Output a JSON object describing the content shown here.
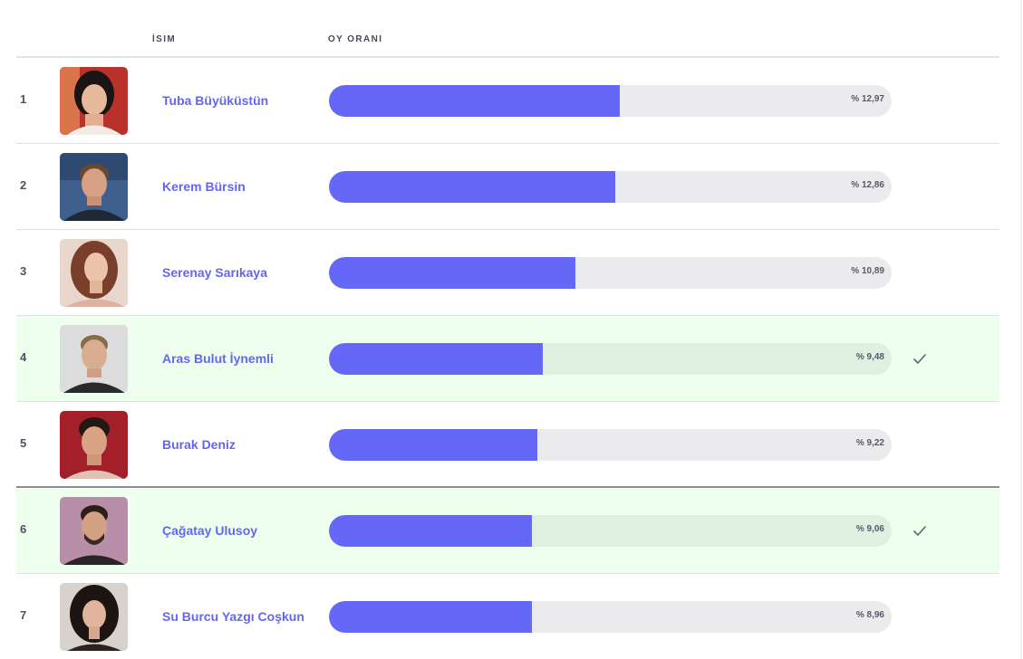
{
  "header": {
    "name_label": "İSIM",
    "vote_label": "OY ORANI"
  },
  "colors": {
    "accent": "#6567f6",
    "selected_row": "#efffee",
    "bar_track": "#ebebee"
  },
  "rows": [
    {
      "rank": "1",
      "name": "Tuba Büyüküstün",
      "percent_label": "% 12,97",
      "share": 0.5177,
      "selected": false,
      "avatar": "avatar-portrait"
    },
    {
      "rank": "2",
      "name": "Kerem Bürsin",
      "percent_label": "% 12,86",
      "share": 0.5081,
      "selected": false,
      "avatar": "avatar-portrait"
    },
    {
      "rank": "3",
      "name": "Serenay Sarıkaya",
      "percent_label": "% 10,89",
      "share": 0.438,
      "selected": false,
      "avatar": "avatar-portrait"
    },
    {
      "rank": "4",
      "name": "Aras Bulut İynemli",
      "percent_label": "% 9,48",
      "share": 0.38,
      "selected": true,
      "avatar": "avatar-portrait"
    },
    {
      "rank": "5",
      "name": "Burak Deniz",
      "percent_label": "% 9,22",
      "share": 0.3704,
      "selected": false,
      "avatar": "avatar-portrait"
    },
    {
      "rank": "6",
      "name": "Çağatay Ulusoy",
      "percent_label": "% 9,06",
      "share": 0.3607,
      "selected": true,
      "avatar": "avatar-portrait"
    },
    {
      "rank": "7",
      "name": "Su Burcu Yazgı Coşkun",
      "percent_label": "% 8,96",
      "share": 0.3607,
      "selected": false,
      "avatar": "avatar-portrait"
    }
  ]
}
